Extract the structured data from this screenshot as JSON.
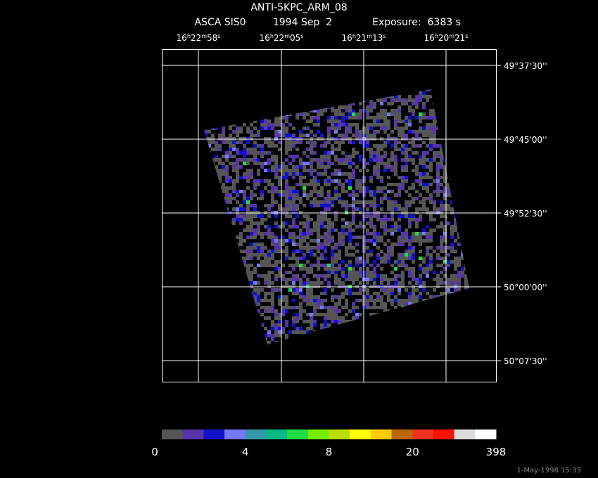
{
  "header": {
    "title": "ANTI-5KPC_ARM_08",
    "instrument": "ASCA SIS0",
    "date": "1994 Sep  2",
    "exposure": "Exposure:  6383 s"
  },
  "ra_labels": [
    "16h22m58s",
    "16h22m05s",
    "16h21m13s",
    "16h20m21s"
  ],
  "dec_labels": [
    "49°37'30''",
    "49°45'00''",
    "49°52'30''",
    "50°00'00''",
    "50°07'30''"
  ],
  "colorbar": {
    "colors": [
      "#555555",
      "#5533aa",
      "#1111cc",
      "#7777ff",
      "#3399aa",
      "#00bb88",
      "#22dd44",
      "#77ee00",
      "#bbdd00",
      "#ffff00",
      "#ffcc00",
      "#bb6600",
      "#ee3322",
      "#ff1100",
      "#dddddd",
      "#ffffff"
    ],
    "labels": [
      0,
      4,
      8,
      20,
      398
    ]
  },
  "timestamp": "1-May-1998 15:35"
}
